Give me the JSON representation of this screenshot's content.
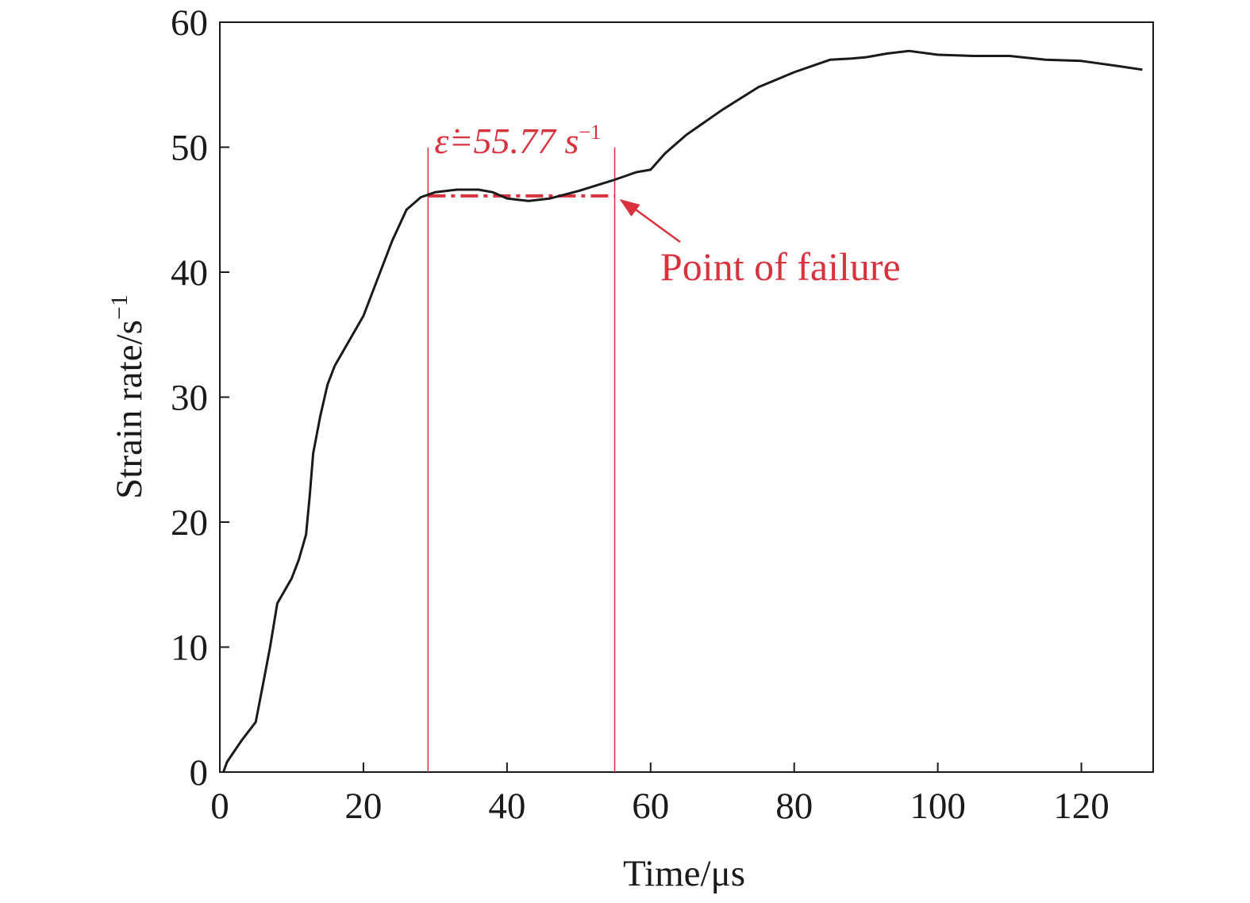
{
  "chart_data": {
    "type": "line",
    "xlabel": "Time/μs",
    "ylabel": "Strain rate/s",
    "ylabel_sup": "−1",
    "xlim": [
      0,
      130
    ],
    "ylim": [
      0,
      60
    ],
    "x_ticks": [
      0,
      20,
      40,
      60,
      80,
      100,
      120
    ],
    "y_ticks": [
      0,
      10,
      20,
      30,
      40,
      50,
      60
    ],
    "grid": false,
    "series": [
      {
        "color": "#1a1a1a",
        "x": [
          0.5,
          1,
          3,
          5,
          6,
          7,
          8,
          10,
          11,
          12,
          12.5,
          13,
          14,
          15,
          16,
          18,
          20,
          22,
          24,
          26,
          28,
          29,
          30,
          33,
          36,
          38,
          40,
          43,
          46,
          50,
          55,
          58,
          60,
          62,
          65,
          70,
          75,
          80,
          82,
          85,
          88,
          90,
          93,
          96,
          100,
          105,
          110,
          115,
          120,
          125,
          128.5
        ],
        "y": [
          0,
          0.8,
          2.5,
          4,
          7,
          10,
          13.5,
          15.5,
          17,
          19,
          22,
          25.5,
          28.5,
          31,
          32.5,
          34.5,
          36.5,
          39.5,
          42.5,
          45,
          46,
          46.2,
          46.4,
          46.6,
          46.6,
          46.4,
          45.9,
          45.7,
          45.9,
          46.5,
          47.4,
          48,
          48.2,
          49.5,
          51,
          53,
          54.8,
          56,
          56.4,
          57,
          57.1,
          57.2,
          57.5,
          57.7,
          57.4,
          57.3,
          57.3,
          57,
          56.9,
          56.5,
          56.2
        ]
      }
    ],
    "annotations": {
      "epsilon_label": "ε̇=55.77 s",
      "epsilon_sup": "−1",
      "failure_label": "Point of failure",
      "color": "#d9323f",
      "region_x": [
        29,
        55
      ],
      "mean_level": 46.1,
      "failure_point": [
        55,
        46.1
      ]
    }
  }
}
